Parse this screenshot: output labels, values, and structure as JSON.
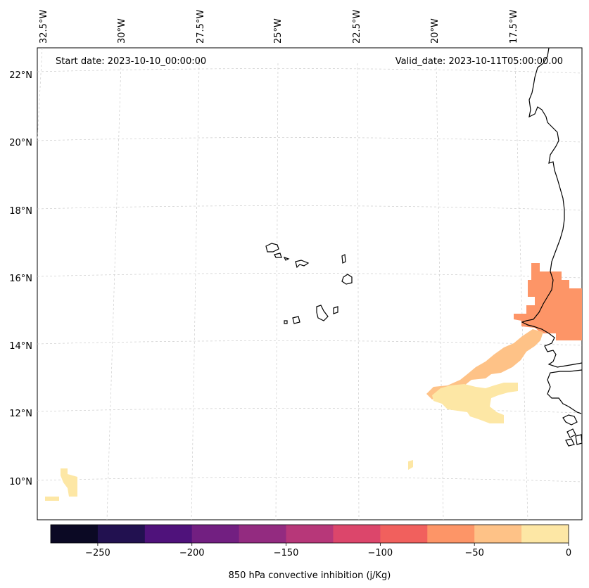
{
  "header": {
    "start_date": "Start date: 2023-10-10_00:00:00",
    "valid_date": "Valid_date: 2023-10-11T05:00:00.00"
  },
  "lon_labels": [
    "32.5°W",
    "30°W",
    "27.5°W",
    "25°W",
    "22.5°W",
    "20°W",
    "17.5°W"
  ],
  "lat_labels": [
    "22°N",
    "20°N",
    "18°N",
    "16°N",
    "14°N",
    "12°N",
    "10°N"
  ],
  "colorbar": {
    "label": "850 hPa convective inhibition (j/Kg)",
    "tick_labels": [
      "−250",
      "−200",
      "−150",
      "−100",
      "−50",
      "0"
    ],
    "range": [
      -275,
      0
    ],
    "colors": [
      "#0b0924",
      "#221150",
      "#4f127b",
      "#721f81",
      "#932b80",
      "#b73779",
      "#dc466b",
      "#f1605d",
      "#fd9567",
      "#fec287",
      "#fde7a5"
    ]
  },
  "fields": {
    "cin_minus_50_to_minus_75_color": "#fd9567",
    "cin_minus_25_to_minus_50_color": "#fec287",
    "cin_0_to_minus_25_color": "#fde7a5"
  },
  "map_style": {
    "coastline_color": "#000000",
    "gridline_color": "#cccccc",
    "gridlines": "dashed"
  }
}
